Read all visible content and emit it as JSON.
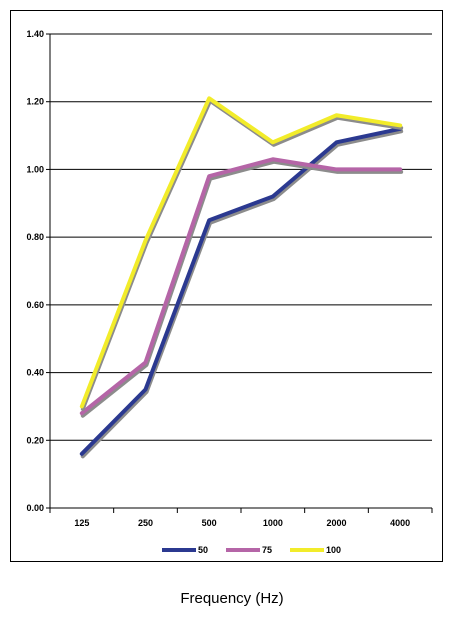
{
  "chart_data": {
    "type": "line",
    "categories": [
      "125",
      "250",
      "500",
      "1000",
      "2000",
      "4000"
    ],
    "series": [
      {
        "name": "50",
        "values": [
          0.16,
          0.35,
          0.85,
          0.92,
          1.08,
          1.12
        ],
        "color": "#2b3990"
      },
      {
        "name": "75",
        "values": [
          0.28,
          0.43,
          0.98,
          1.03,
          1.0,
          1.0
        ],
        "color": "#b565a7"
      },
      {
        "name": "100",
        "values": [
          0.3,
          0.79,
          1.21,
          1.08,
          1.16,
          1.13
        ],
        "color": "#f2ec2a"
      }
    ],
    "yticks": [
      "0.00",
      "0.20",
      "0.40",
      "0.60",
      "0.80",
      "1.00",
      "1.20",
      "1.40"
    ],
    "ylim": [
      0,
      1.4
    ],
    "xlabel": "Frequency (Hz)",
    "grid": "horizontal",
    "legend_position": "bottom",
    "shadow_color": "#8c8c8c"
  }
}
